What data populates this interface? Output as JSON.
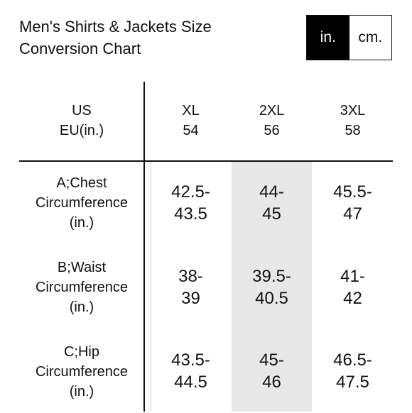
{
  "title_lines": [
    "Men's Shirts & Jackets Size",
    "Conversion Chart"
  ],
  "unit_toggle": {
    "selected": "in.",
    "options": [
      "in.",
      "cm."
    ]
  },
  "table": {
    "header": {
      "label_lines": [
        "US",
        "EU(in.)"
      ],
      "columns": [
        {
          "us": "XL",
          "eu": "54"
        },
        {
          "us": "2XL",
          "eu": "56"
        },
        {
          "us": "3XL",
          "eu": "58"
        }
      ]
    },
    "rows": [
      {
        "label_lines": [
          "A;Chest",
          "Circumference",
          "(in.)"
        ],
        "values": [
          [
            "42.5-",
            "43.5"
          ],
          [
            "44-",
            "45"
          ],
          [
            "45.5-",
            "47"
          ]
        ]
      },
      {
        "label_lines": [
          "B;Waist",
          "Circumference",
          "(in.)"
        ],
        "values": [
          [
            "38-",
            "39"
          ],
          [
            "39.5-",
            "40.5"
          ],
          [
            "41-",
            "42"
          ]
        ]
      },
      {
        "label_lines": [
          "C;Hip",
          "Circumference",
          "(in.)"
        ],
        "values": [
          [
            "43.5-",
            "44.5"
          ],
          [
            "45-",
            "46"
          ],
          [
            "46.5-",
            "47.5"
          ]
        ]
      }
    ]
  },
  "colors": {
    "shade": "#e8e8e8",
    "toggle_active_bg": "#000000",
    "text": "#111111"
  }
}
